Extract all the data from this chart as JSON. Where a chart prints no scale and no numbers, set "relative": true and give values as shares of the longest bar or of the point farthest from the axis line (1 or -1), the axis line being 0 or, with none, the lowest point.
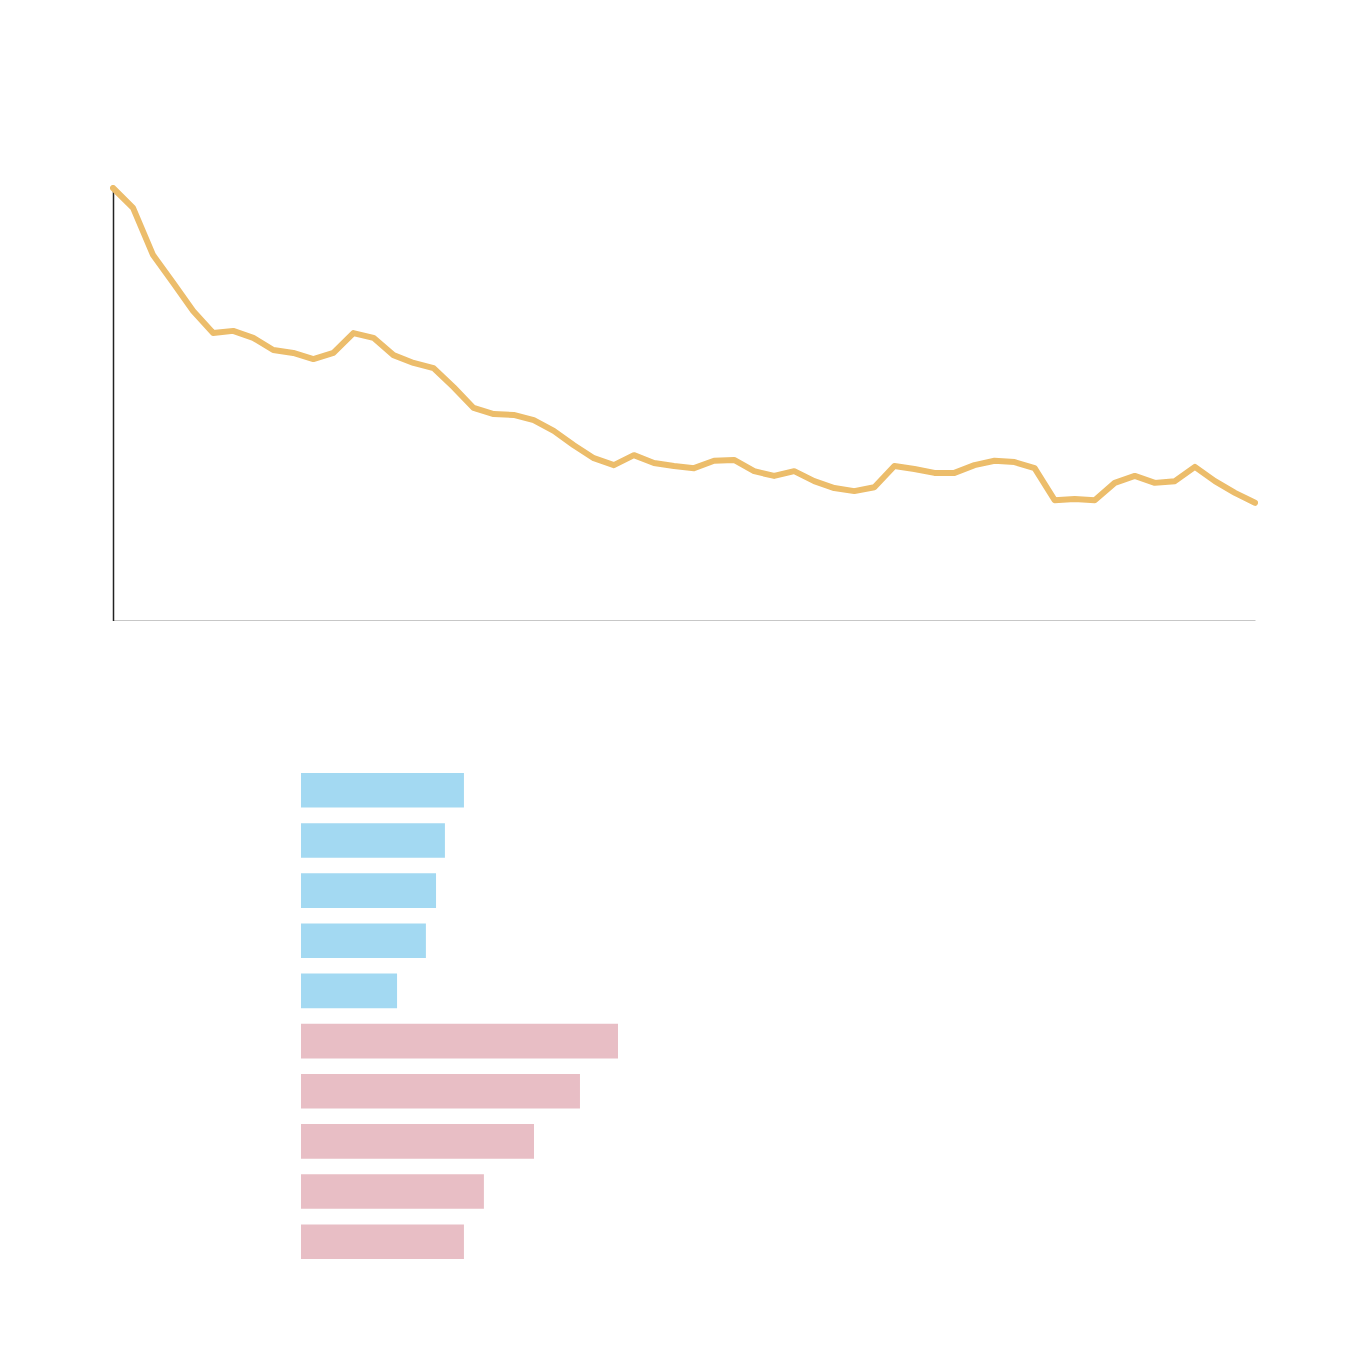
{
  "chart_data": [
    {
      "type": "line",
      "relative": true,
      "categories": [
        null,
        null,
        null,
        null,
        null,
        null,
        null,
        null,
        null,
        null,
        null,
        null,
        null,
        null,
        null,
        null,
        null,
        null,
        null,
        null,
        null,
        null,
        null,
        null,
        null,
        null,
        null,
        null,
        null,
        null,
        null,
        null,
        null,
        null,
        null,
        null,
        null,
        null,
        null,
        null,
        null,
        null,
        null,
        null,
        null,
        null,
        null,
        null,
        null,
        null,
        null,
        null,
        null,
        null,
        null,
        null,
        null,
        null
      ],
      "series": [
        {
          "color": "#ecbd6b",
          "values": [
            1,
            0.954,
            0.845,
            0.781,
            0.716,
            0.665,
            0.67,
            0.654,
            0.626,
            0.619,
            0.605,
            0.619,
            0.665,
            0.654,
            0.614,
            0.596,
            0.584,
            0.54,
            0.492,
            0.478,
            0.476,
            0.464,
            0.439,
            0.406,
            0.376,
            0.36,
            0.383,
            0.365,
            0.358,
            0.353,
            0.37,
            0.372,
            0.346,
            0.335,
            0.346,
            0.323,
            0.307,
            0.3,
            0.309,
            0.358,
            0.351,
            0.342,
            0.342,
            0.36,
            0.37,
            0.367,
            0.353,
            0.279,
            0.282,
            0.279,
            0.319,
            0.335,
            0.319,
            0.323,
            0.356,
            0.323,
            0.296,
            0.273
          ]
        }
      ]
    },
    {
      "type": "bar",
      "orientation": "horizontal",
      "relative": true,
      "categories": [
        null,
        null,
        null,
        null,
        null,
        null,
        null,
        null,
        null,
        null
      ],
      "values": [
        0.514,
        0.454,
        0.426,
        0.394,
        0.303,
        1,
        0.88,
        0.735,
        0.577,
        0.514
      ],
      "colors": [
        "#a3d9f2",
        "#a3d9f2",
        "#a3d9f2",
        "#a3d9f2",
        "#a3d9f2",
        "#e8bec5",
        "#e8bec5",
        "#e8bec5",
        "#e8bec5",
        "#e8bec5"
      ]
    }
  ]
}
